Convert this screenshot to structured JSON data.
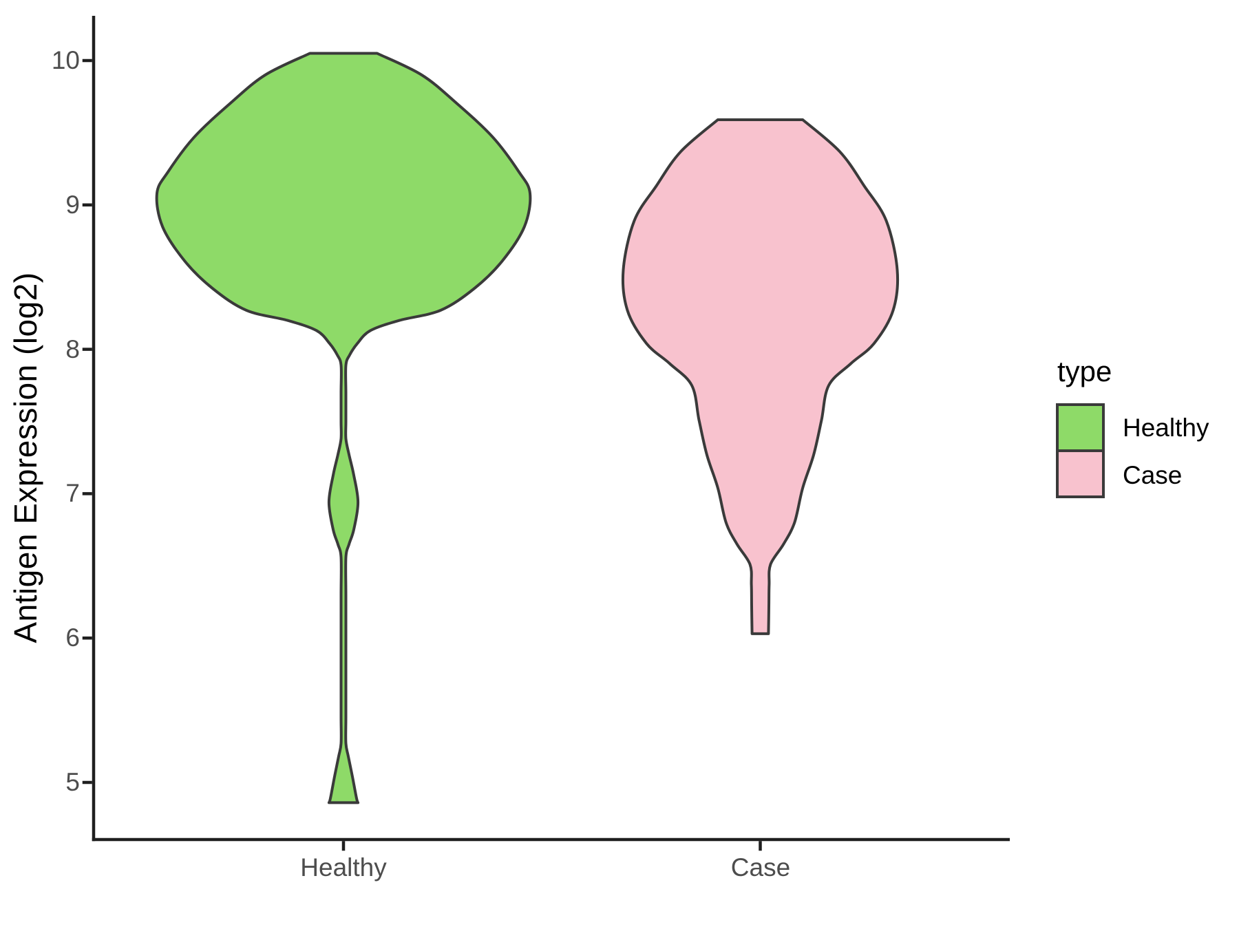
{
  "chart_data": {
    "type": "violin",
    "title": "",
    "xlabel": "",
    "ylabel": "Antigen Expression (log2)",
    "categories": [
      "Healthy",
      "Case"
    ],
    "y_ticks": [
      10,
      9,
      8,
      7,
      6,
      5
    ],
    "ylim": [
      4.55,
      10.4
    ],
    "grid": false,
    "legend": {
      "title": "type",
      "position": "right"
    },
    "series": [
      {
        "name": "Healthy",
        "color": "#8EDA68",
        "outline": "#3A3A3A",
        "min": 4.86,
        "max": 10.05,
        "peak": 9.08,
        "profile": [
          [
            10.05,
            0.18
          ],
          [
            9.9,
            0.42
          ],
          [
            9.7,
            0.61
          ],
          [
            9.47,
            0.8
          ],
          [
            9.23,
            0.94
          ],
          [
            9.08,
            1.0
          ],
          [
            8.85,
            0.97
          ],
          [
            8.61,
            0.85
          ],
          [
            8.42,
            0.7
          ],
          [
            8.27,
            0.52
          ],
          [
            8.2,
            0.3
          ],
          [
            8.13,
            0.145
          ],
          [
            8.04,
            0.074
          ],
          [
            7.96,
            0.033
          ],
          [
            7.89,
            0.013
          ],
          [
            7.7,
            0.013
          ],
          [
            7.5,
            0.013
          ],
          [
            7.38,
            0.013
          ],
          [
            7.27,
            0.03
          ],
          [
            7.13,
            0.055
          ],
          [
            6.94,
            0.078
          ],
          [
            6.75,
            0.055
          ],
          [
            6.65,
            0.03
          ],
          [
            6.56,
            0.013
          ],
          [
            6.3,
            0.013
          ],
          [
            6.0,
            0.013
          ],
          [
            5.7,
            0.013
          ],
          [
            5.45,
            0.013
          ],
          [
            5.27,
            0.013
          ],
          [
            5.18,
            0.026
          ],
          [
            5.04,
            0.048
          ],
          [
            4.89,
            0.07
          ],
          [
            4.86,
            0.078
          ]
        ]
      },
      {
        "name": "Case",
        "color": "#F8C2CE",
        "outline": "#3A3A3A",
        "min": 6.03,
        "max": 9.59,
        "peak": 8.55,
        "profile": [
          [
            9.59,
            0.31
          ],
          [
            9.37,
            0.58
          ],
          [
            9.13,
            0.76
          ],
          [
            8.89,
            0.92
          ],
          [
            8.55,
            1.0
          ],
          [
            8.27,
            0.97
          ],
          [
            8.04,
            0.83
          ],
          [
            7.9,
            0.66
          ],
          [
            7.75,
            0.5
          ],
          [
            7.51,
            0.447
          ],
          [
            7.27,
            0.39
          ],
          [
            7.04,
            0.31
          ],
          [
            6.8,
            0.25
          ],
          [
            6.65,
            0.17
          ],
          [
            6.51,
            0.075
          ],
          [
            6.37,
            0.065
          ],
          [
            6.22,
            0.063
          ],
          [
            6.03,
            0.06
          ]
        ]
      }
    ]
  },
  "colors": {
    "background": "#FFFFFF",
    "axis_line": "#1F1F1F",
    "tick_mark": "#1F1F1F",
    "tick_label": "#4D4D4D",
    "text": "#000000"
  }
}
